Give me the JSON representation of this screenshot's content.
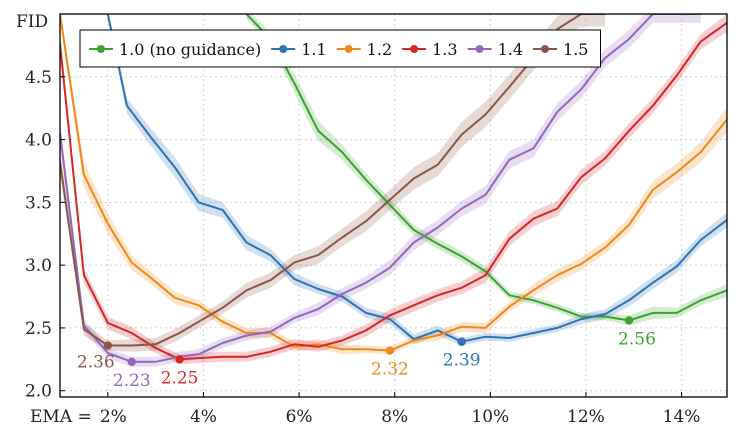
{
  "chart_data": {
    "type": "line",
    "title": "",
    "xlabel": "EMA",
    "ylabel": "FID",
    "x_prefix": "EMA = ",
    "xlim": [
      1.0,
      14.95
    ],
    "ylim": [
      1.95,
      5.0
    ],
    "xticks": [
      {
        "value": 2,
        "label": "2%"
      },
      {
        "value": 4,
        "label": "4%"
      },
      {
        "value": 6,
        "label": "6%"
      },
      {
        "value": 8,
        "label": "8%"
      },
      {
        "value": 10,
        "label": "10%"
      },
      {
        "value": 12,
        "label": "12%"
      },
      {
        "value": 14,
        "label": "14%"
      }
    ],
    "yticks": [
      {
        "value": 2.0,
        "label": "2.0"
      },
      {
        "value": 2.5,
        "label": "2.5"
      },
      {
        "value": 3.0,
        "label": "3.0"
      },
      {
        "value": 3.5,
        "label": "3.5"
      },
      {
        "value": 4.0,
        "label": "4.0"
      },
      {
        "value": 4.5,
        "label": "4.5"
      }
    ],
    "grid": true,
    "legend_position": "top",
    "series": [
      {
        "name": "1.0 (no guidance)",
        "color": "#3ba32f",
        "slug": "1-0",
        "x": [
          4.9,
          5.4,
          5.9,
          6.4,
          6.9,
          7.4,
          7.9,
          8.4,
          8.9,
          9.4,
          9.9,
          10.4,
          10.9,
          11.4,
          11.9,
          12.4,
          12.9,
          13.4,
          13.9,
          14.4,
          14.95
        ],
        "y": [
          5.0,
          4.8,
          4.45,
          4.07,
          3.9,
          3.68,
          3.48,
          3.28,
          3.17,
          3.07,
          2.95,
          2.76,
          2.72,
          2.66,
          2.59,
          2.59,
          2.56,
          2.62,
          2.62,
          2.72,
          2.8
        ],
        "band": [
          0.04,
          0.05,
          0.07,
          0.08,
          0.06,
          0.05,
          0.05,
          0.04,
          0.04,
          0.04,
          0.04,
          0.03,
          0.03,
          0.03,
          0.03,
          0.03,
          0.04,
          0.05,
          0.04,
          0.04,
          0.05
        ],
        "min_label": "2.56",
        "min_x": 12.9,
        "min_y": 2.56,
        "label_dx": 8,
        "label_dy": 24
      },
      {
        "name": "1.1",
        "color": "#2e72b8",
        "slug": "1-1",
        "x": [
          2.0,
          2.4,
          2.9,
          3.4,
          3.9,
          4.4,
          4.9,
          5.4,
          5.9,
          6.4,
          6.9,
          7.4,
          7.9,
          8.4,
          8.9,
          9.4,
          9.9,
          10.4,
          10.9,
          11.4,
          11.9,
          12.4,
          12.9,
          13.4,
          13.9,
          14.4,
          14.95
        ],
        "y": [
          5.0,
          4.27,
          4.02,
          3.78,
          3.5,
          3.44,
          3.18,
          3.08,
          2.89,
          2.81,
          2.75,
          2.62,
          2.57,
          2.41,
          2.48,
          2.39,
          2.43,
          2.42,
          2.46,
          2.5,
          2.57,
          2.61,
          2.72,
          2.86,
          2.99,
          3.2,
          3.36
        ],
        "band": [
          0.04,
          0.06,
          0.07,
          0.08,
          0.07,
          0.06,
          0.06,
          0.05,
          0.05,
          0.04,
          0.04,
          0.04,
          0.04,
          0.04,
          0.04,
          0.03,
          0.03,
          0.03,
          0.03,
          0.03,
          0.04,
          0.04,
          0.05,
          0.05,
          0.05,
          0.05,
          0.06
        ],
        "min_label": "2.39",
        "min_x": 9.4,
        "min_y": 2.39,
        "label_dx": 0,
        "label_dy": 24
      },
      {
        "name": "1.2",
        "color": "#f0891d",
        "slug": "1-2",
        "x": [
          1.0,
          1.5,
          2.0,
          2.5,
          2.9,
          3.4,
          3.9,
          4.4,
          4.9,
          5.4,
          5.9,
          6.4,
          6.9,
          7.4,
          7.9,
          8.4,
          8.9,
          9.4,
          9.9,
          10.4,
          10.9,
          11.4,
          11.9,
          12.4,
          12.9,
          13.4,
          13.9,
          14.4,
          14.95
        ],
        "y": [
          5.0,
          3.72,
          3.33,
          3.02,
          2.9,
          2.74,
          2.68,
          2.55,
          2.46,
          2.46,
          2.35,
          2.37,
          2.33,
          2.33,
          2.32,
          2.4,
          2.44,
          2.51,
          2.5,
          2.67,
          2.8,
          2.92,
          3.01,
          3.14,
          3.32,
          3.6,
          3.74,
          3.9,
          4.16
        ],
        "band": [
          0.05,
          0.1,
          0.08,
          0.06,
          0.05,
          0.05,
          0.04,
          0.04,
          0.04,
          0.04,
          0.04,
          0.04,
          0.04,
          0.03,
          0.03,
          0.03,
          0.04,
          0.04,
          0.04,
          0.04,
          0.05,
          0.05,
          0.05,
          0.05,
          0.06,
          0.07,
          0.07,
          0.08,
          0.1
        ],
        "min_label": "2.32",
        "min_x": 7.9,
        "min_y": 2.32,
        "label_dx": 0,
        "label_dy": 24
      },
      {
        "name": "1.3",
        "color": "#d62728",
        "slug": "1-3",
        "x": [
          1.0,
          1.5,
          2.0,
          2.5,
          3.0,
          3.5,
          3.9,
          4.4,
          4.9,
          5.4,
          5.9,
          6.4,
          6.9,
          7.4,
          7.9,
          8.4,
          8.9,
          9.4,
          9.9,
          10.4,
          10.9,
          11.4,
          11.9,
          12.4,
          12.9,
          13.4,
          13.9,
          14.4,
          14.95
        ],
        "y": [
          4.76,
          2.92,
          2.54,
          2.46,
          2.34,
          2.25,
          2.26,
          2.27,
          2.27,
          2.31,
          2.37,
          2.35,
          2.4,
          2.48,
          2.6,
          2.68,
          2.76,
          2.82,
          2.92,
          3.21,
          3.37,
          3.45,
          3.7,
          3.85,
          4.07,
          4.27,
          4.51,
          4.78,
          4.93
        ],
        "band": [
          0.08,
          0.06,
          0.05,
          0.05,
          0.04,
          0.04,
          0.04,
          0.04,
          0.04,
          0.04,
          0.04,
          0.04,
          0.04,
          0.05,
          0.05,
          0.05,
          0.05,
          0.05,
          0.06,
          0.06,
          0.06,
          0.06,
          0.06,
          0.06,
          0.06,
          0.06,
          0.06,
          0.06,
          0.07
        ],
        "min_label": "2.25",
        "min_x": 3.5,
        "min_y": 2.25,
        "label_dx": 0,
        "label_dy": 24
      },
      {
        "name": "1.4",
        "color": "#9467bd",
        "slug": "1-4",
        "x": [
          1.0,
          1.5,
          2.0,
          2.5,
          3.0,
          3.5,
          3.9,
          4.4,
          4.9,
          5.4,
          5.9,
          6.4,
          6.9,
          7.4,
          7.9,
          8.4,
          8.9,
          9.4,
          9.9,
          10.4,
          10.9,
          11.4,
          11.9,
          12.4,
          12.9,
          13.4,
          13.9,
          14.4
        ],
        "y": [
          4.05,
          2.52,
          2.3,
          2.23,
          2.23,
          2.27,
          2.29,
          2.38,
          2.44,
          2.47,
          2.58,
          2.65,
          2.77,
          2.86,
          2.98,
          3.18,
          3.3,
          3.45,
          3.56,
          3.84,
          3.93,
          4.22,
          4.4,
          4.65,
          4.8,
          5.0,
          5.0,
          5.0
        ],
        "band": [
          0.1,
          0.05,
          0.04,
          0.04,
          0.04,
          0.04,
          0.04,
          0.04,
          0.04,
          0.04,
          0.04,
          0.05,
          0.05,
          0.05,
          0.06,
          0.06,
          0.06,
          0.06,
          0.07,
          0.07,
          0.07,
          0.07,
          0.07,
          0.07,
          0.07,
          0.07,
          0.07,
          0.07
        ],
        "min_label": "2.23",
        "min_x": 2.5,
        "min_y": 2.23,
        "label_dx": 0,
        "label_dy": 24
      },
      {
        "name": "1.5",
        "color": "#8c564b",
        "slug": "1-5",
        "x": [
          1.0,
          1.5,
          2.0,
          2.5,
          3.0,
          3.5,
          3.9,
          4.4,
          4.9,
          5.4,
          5.9,
          6.4,
          6.9,
          7.4,
          7.9,
          8.4,
          8.9,
          9.4,
          9.9,
          10.4,
          10.9,
          11.4,
          11.9,
          12.4
        ],
        "y": [
          3.82,
          2.49,
          2.36,
          2.36,
          2.37,
          2.46,
          2.55,
          2.66,
          2.8,
          2.88,
          3.02,
          3.08,
          3.22,
          3.35,
          3.52,
          3.69,
          3.8,
          4.04,
          4.2,
          4.42,
          4.65,
          4.88,
          5.0,
          5.0
        ],
        "band": [
          0.1,
          0.05,
          0.04,
          0.05,
          0.05,
          0.05,
          0.05,
          0.05,
          0.06,
          0.06,
          0.06,
          0.07,
          0.07,
          0.08,
          0.08,
          0.09,
          0.09,
          0.1,
          0.1,
          0.1,
          0.1,
          0.1,
          0.1,
          0.1
        ],
        "min_label": "2.36",
        "min_x": 2.0,
        "min_y": 2.36,
        "label_dx": -12,
        "label_dy": 22
      }
    ]
  }
}
